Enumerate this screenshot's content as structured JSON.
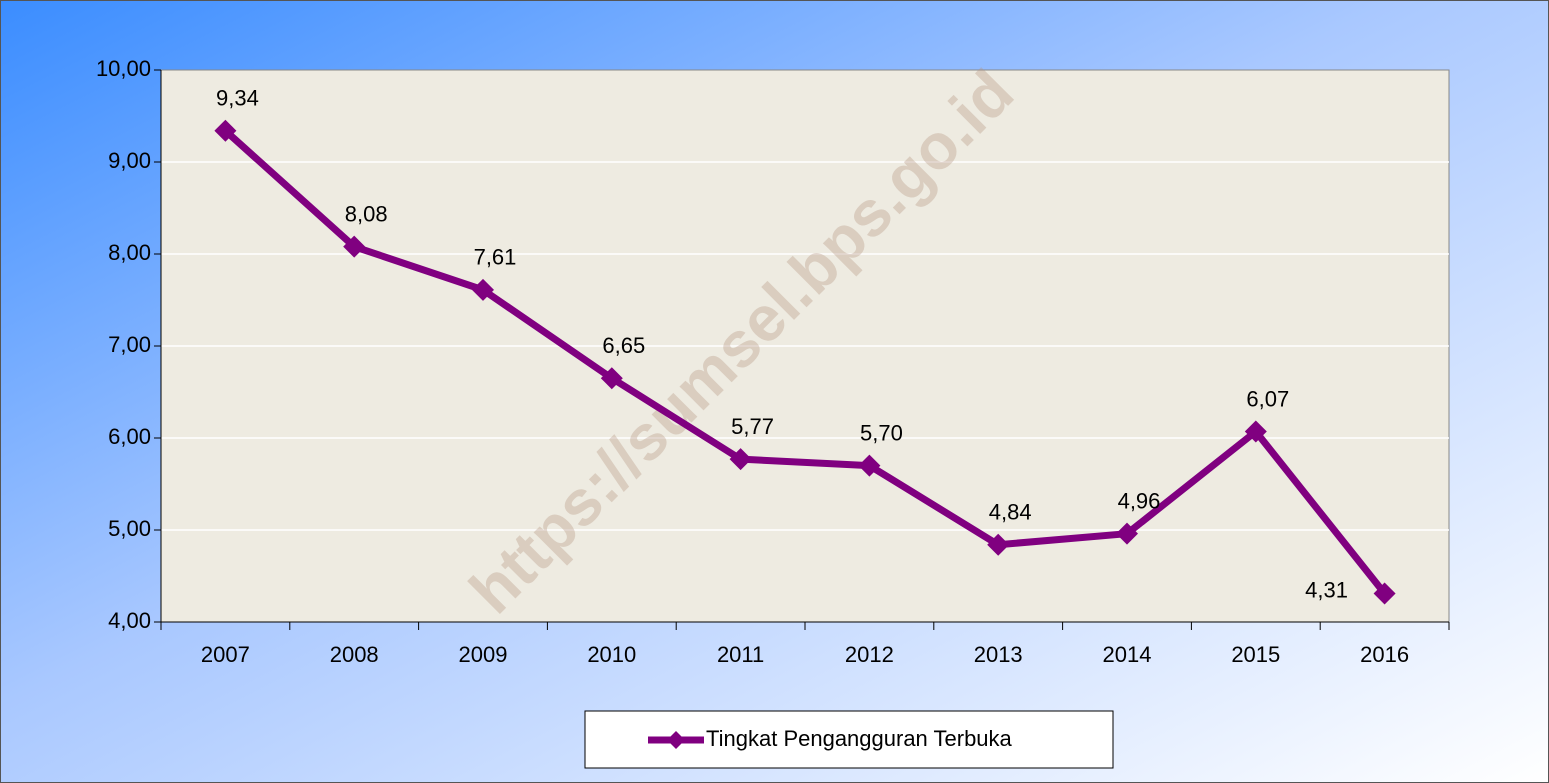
{
  "chart_data": {
    "type": "line",
    "categories": [
      "2007",
      "2008",
      "2009",
      "2010",
      "2011",
      "2012",
      "2013",
      "2014",
      "2015",
      "2016"
    ],
    "series": [
      {
        "name": "Tingkat Pengangguran Terbuka",
        "color": "#800080",
        "values": [
          9.34,
          8.08,
          7.61,
          6.65,
          5.77,
          5.7,
          4.84,
          4.96,
          6.07,
          4.31
        ],
        "value_labels": [
          "9,34",
          "8,08",
          "7,61",
          "6,65",
          "5,77",
          "5,70",
          "4,84",
          "4,96",
          "6,07",
          "4,31"
        ]
      }
    ],
    "ylim": [
      4,
      10
    ],
    "yticks": [
      {
        "value": 4,
        "label": "4,00"
      },
      {
        "value": 5,
        "label": "5,00"
      },
      {
        "value": 6,
        "label": "6,00"
      },
      {
        "value": 7,
        "label": "7,00"
      },
      {
        "value": 8,
        "label": "8,00"
      },
      {
        "value": 9,
        "label": "9,00"
      },
      {
        "value": 10,
        "label": "10,00"
      }
    ],
    "grid": true,
    "legend": "bottom",
    "watermark": "https://sumsel.bps.go.id"
  }
}
